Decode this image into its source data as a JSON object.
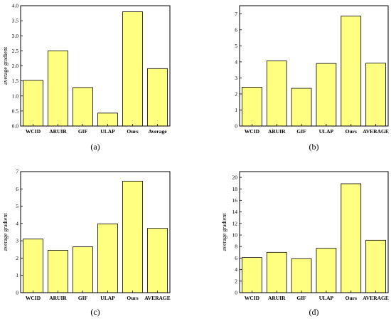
{
  "chart_data": [
    {
      "type": "bar",
      "panel_label": "(a)",
      "ylabel": "average gradient",
      "categories": [
        "WCID",
        "ARUIR",
        "GIF",
        "ULAP",
        "Ours",
        "Average"
      ],
      "values": [
        1.52,
        2.5,
        1.28,
        0.43,
        3.8,
        1.91
      ],
      "ylim": [
        0,
        4.0
      ],
      "yticks": [
        "0.0",
        "0.5",
        "1.0",
        "1.5",
        "2.0",
        "2.5",
        "3.0",
        "3.5",
        "4.0"
      ],
      "bar_color": "#ffff80",
      "grid": false,
      "legend": "none"
    },
    {
      "type": "bar",
      "panel_label": "(b)",
      "ylabel": "",
      "categories": [
        "WCID",
        "ARUIR",
        "GIF",
        "ULAP",
        "Ours",
        "AVERAGE"
      ],
      "values": [
        2.42,
        4.06,
        2.35,
        3.9,
        6.85,
        3.92
      ],
      "ylim": [
        0,
        7.5
      ],
      "yticks": [
        "0",
        "1",
        "2",
        "3",
        "4",
        "5",
        "6",
        "7"
      ],
      "bar_color": "#ffff80",
      "grid": false,
      "legend": "none"
    },
    {
      "type": "bar",
      "panel_label": "(c)",
      "ylabel": "average gradient",
      "categories": [
        "WCID",
        "ARUIR",
        "GIF",
        "ULAP",
        "Ours",
        "AVERAGE"
      ],
      "values": [
        3.1,
        2.45,
        2.65,
        3.98,
        6.45,
        3.72
      ],
      "ylim": [
        0,
        7
      ],
      "yticks": [
        "0",
        "1",
        "2",
        "3",
        "4",
        "5",
        "6",
        "7"
      ],
      "bar_color": "#ffff80",
      "grid": false,
      "legend": "none"
    },
    {
      "type": "bar",
      "panel_label": "(d)",
      "ylabel": "average gradient",
      "categories": [
        "WCID",
        "ARUIR",
        "GIF",
        "ULAP",
        "Ours",
        "AVERAGE"
      ],
      "values": [
        6.1,
        7.0,
        5.9,
        7.7,
        18.9,
        9.1
      ],
      "ylim": [
        0,
        21
      ],
      "yticks": [
        "0",
        "2",
        "4",
        "6",
        "8",
        "10",
        "12",
        "14",
        "16",
        "18",
        "20"
      ],
      "bar_color": "#ffff80",
      "grid": false,
      "legend": "none"
    }
  ]
}
